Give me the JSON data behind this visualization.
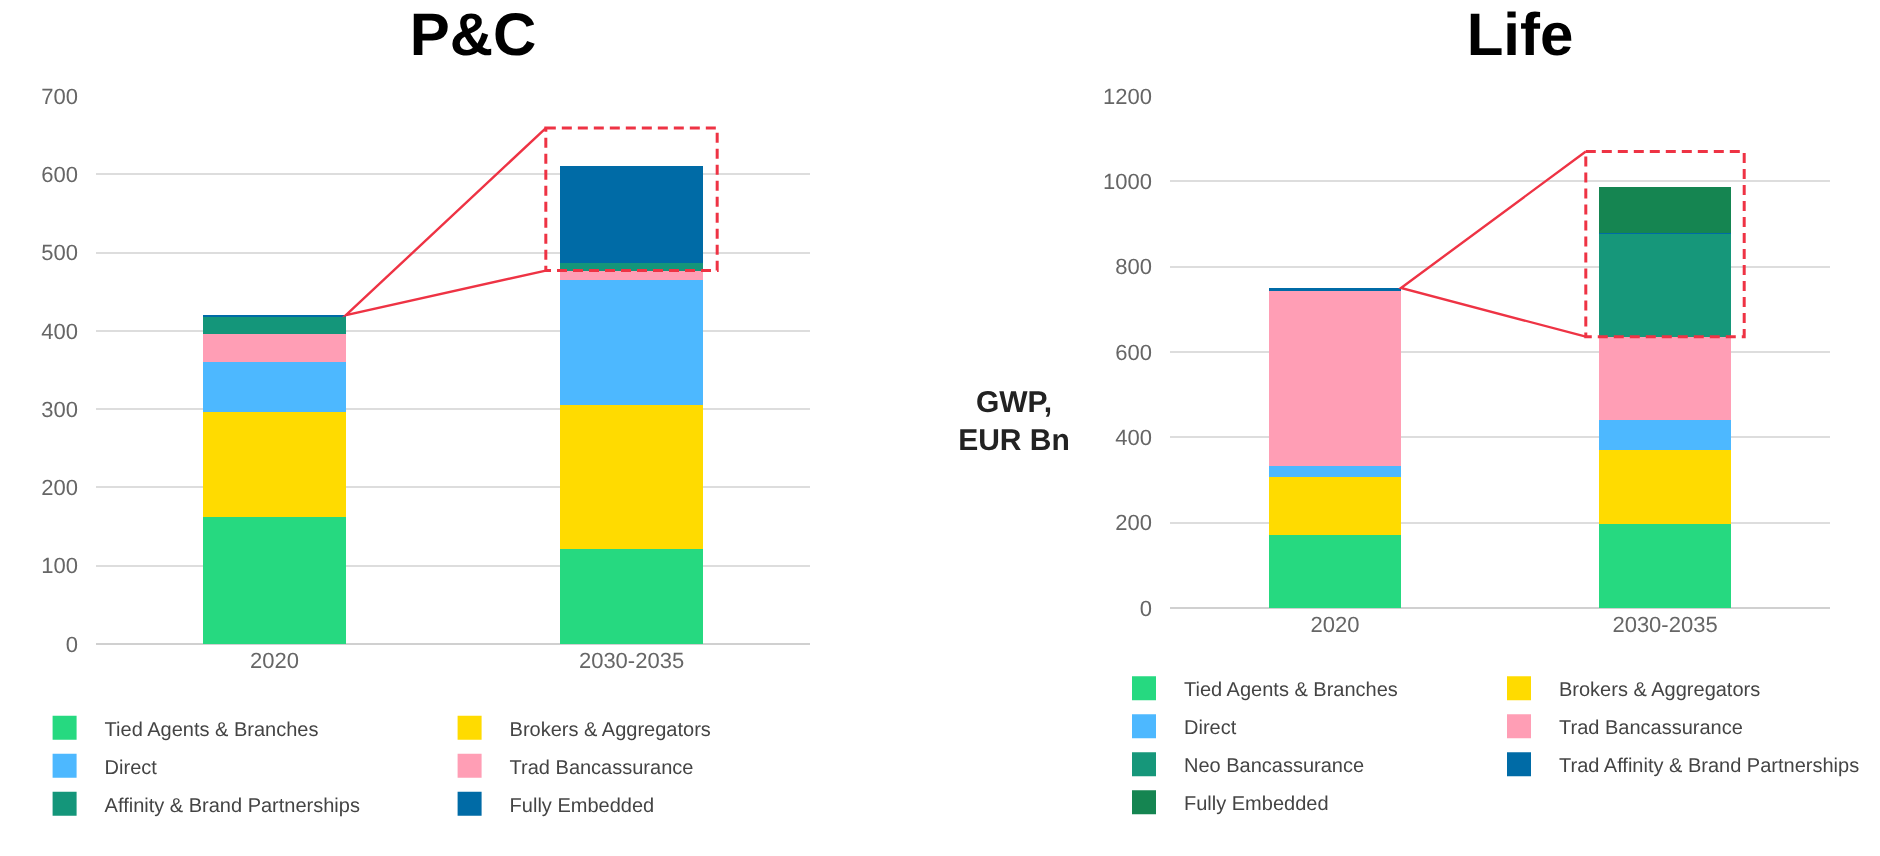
{
  "chart_data": [
    {
      "type": "bar",
      "title": "P&C",
      "ylabel": "GWP, EUR Bn",
      "categories": [
        "2020",
        "2030-2035"
      ],
      "stacked": true,
      "ylim": [
        0,
        700
      ],
      "yticks": [
        0,
        100,
        200,
        300,
        400,
        500,
        600,
        700
      ],
      "grid": "y",
      "legend": "bottom",
      "series": [
        {
          "name": "Tied Agents & Branches",
          "color": "#26d980",
          "values": [
            162,
            122
          ]
        },
        {
          "name": "Brokers & Aggregators",
          "color": "#ffdb00",
          "values": [
            135,
            183
          ]
        },
        {
          "name": "Direct",
          "color": "#4db8ff",
          "values": [
            63,
            160
          ]
        },
        {
          "name": "Trad Bancassurance",
          "color": "#ff9eb5",
          "values": [
            36,
            12
          ]
        },
        {
          "name": "Affinity & Brand Partnerships",
          "color": "#14967a",
          "values": [
            22,
            10
          ]
        },
        {
          "name": "Fully Embedded",
          "color": "#006ba6",
          "values": [
            2,
            123
          ]
        }
      ]
    },
    {
      "type": "bar",
      "title": "Life",
      "categories": [
        "2020",
        "2030-2035"
      ],
      "stacked": true,
      "ylim": [
        0,
        1200
      ],
      "yticks": [
        0,
        200,
        400,
        600,
        800,
        1000,
        1200
      ],
      "grid": "y",
      "legend": "bottom",
      "series": [
        {
          "name": "Tied Agents & Branches",
          "color": "#26d980",
          "values": [
            171,
            197
          ]
        },
        {
          "name": "Brokers & Aggregators",
          "color": "#ffdb00",
          "values": [
            136,
            174
          ]
        },
        {
          "name": "Direct",
          "color": "#4db8ff",
          "values": [
            26,
            69
          ]
        },
        {
          "name": "Trad Bancassurance",
          "color": "#ff9eb5",
          "values": [
            410,
            196
          ]
        },
        {
          "name": "Neo Bancassurance",
          "color": "#16977a",
          "values": [
            0,
            240
          ]
        },
        {
          "name": "Trad Affinity & Brand Partnerships",
          "color": "#006ba6",
          "values": [
            7,
            3
          ]
        },
        {
          "name": "Fully Embedded",
          "color": "#158551",
          "values": [
            0,
            107
          ]
        }
      ]
    }
  ]
}
